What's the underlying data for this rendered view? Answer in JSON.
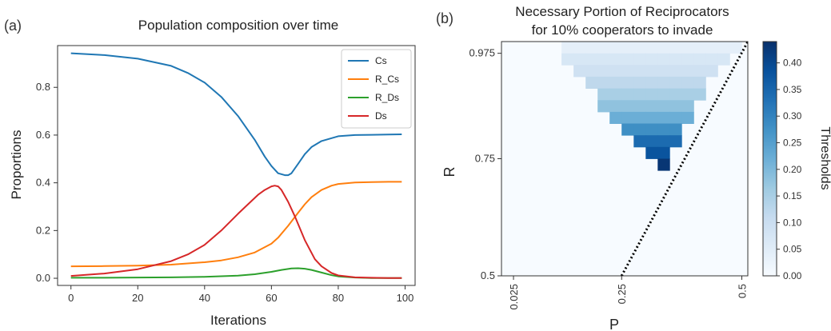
{
  "panel_a_label": "(a)",
  "panel_b_label": "(b)",
  "chart_data": [
    {
      "type": "line",
      "title": "Population composition over time",
      "xlabel": "Iterations",
      "ylabel": "Proportions",
      "xlim": [
        -4,
        103
      ],
      "ylim": [
        -0.03,
        0.975
      ],
      "xticks": [
        0,
        20,
        40,
        60,
        80,
        100
      ],
      "yticks": [
        0.0,
        0.2,
        0.4,
        0.6,
        0.8
      ],
      "xtick_labels": [
        "0",
        "20",
        "40",
        "60",
        "80",
        "100"
      ],
      "ytick_labels": [
        "0.0",
        "0.2",
        "0.4",
        "0.6",
        "0.8"
      ],
      "legend_position": "top-right",
      "series": [
        {
          "name": "Cs",
          "color": "#1f77b4",
          "x": [
            0,
            10,
            20,
            30,
            35,
            40,
            45,
            50,
            55,
            58,
            60,
            62,
            64,
            65,
            66,
            68,
            70,
            72,
            75,
            80,
            85,
            90,
            95,
            99
          ],
          "y": [
            0.943,
            0.935,
            0.92,
            0.89,
            0.86,
            0.82,
            0.76,
            0.68,
            0.58,
            0.51,
            0.47,
            0.44,
            0.432,
            0.432,
            0.44,
            0.48,
            0.52,
            0.55,
            0.575,
            0.595,
            0.6,
            0.601,
            0.602,
            0.603
          ]
        },
        {
          "name": "R_Cs",
          "color": "#ff7f0e",
          "x": [
            0,
            10,
            20,
            30,
            40,
            45,
            50,
            55,
            60,
            62,
            65,
            68,
            70,
            72,
            75,
            78,
            80,
            85,
            90,
            95,
            99
          ],
          "y": [
            0.05,
            0.051,
            0.053,
            0.057,
            0.067,
            0.075,
            0.088,
            0.108,
            0.145,
            0.17,
            0.22,
            0.275,
            0.31,
            0.34,
            0.37,
            0.388,
            0.395,
            0.401,
            0.403,
            0.404,
            0.404
          ]
        },
        {
          "name": "R_Ds",
          "color": "#2ca02c",
          "x": [
            0,
            10,
            20,
            30,
            40,
            50,
            55,
            60,
            63,
            66,
            68,
            70,
            72,
            75,
            78,
            80,
            85,
            90,
            95,
            99
          ],
          "y": [
            0.002,
            0.002,
            0.003,
            0.004,
            0.006,
            0.011,
            0.017,
            0.027,
            0.035,
            0.041,
            0.042,
            0.04,
            0.035,
            0.024,
            0.013,
            0.008,
            0.003,
            0.001,
            0.001,
            0.001
          ]
        },
        {
          "name": "Ds",
          "color": "#d62728",
          "x": [
            0,
            10,
            20,
            30,
            35,
            40,
            45,
            50,
            53,
            56,
            58,
            60,
            61,
            62,
            63,
            65,
            67,
            70,
            73,
            75,
            78,
            80,
            85,
            90,
            95,
            99
          ],
          "y": [
            0.01,
            0.02,
            0.038,
            0.072,
            0.1,
            0.14,
            0.2,
            0.27,
            0.31,
            0.35,
            0.37,
            0.385,
            0.388,
            0.385,
            0.37,
            0.32,
            0.26,
            0.16,
            0.08,
            0.05,
            0.022,
            0.012,
            0.004,
            0.002,
            0.001,
            0.001
          ]
        }
      ]
    },
    {
      "type": "heatmap",
      "title": "Necessary Portion of Reciprocators\nfor 10% cooperators to invade",
      "xlabel": "P",
      "ylabel": "R",
      "xtick_labels": [
        "0.025",
        "0.25",
        "0.5"
      ],
      "ytick_labels": [
        "0.975",
        "0.75",
        "0.5"
      ],
      "p_min": 0.0,
      "p_max": 0.5125,
      "r_min": 0.5,
      "r_max": 1.0,
      "cell_size": 0.025,
      "colorbar_label": "Thresholds",
      "colorbar_range": [
        0,
        0.44
      ],
      "colorbar_ticks": [
        0.0,
        0.05,
        0.1,
        0.15,
        0.2,
        0.25,
        0.3,
        0.35,
        0.4
      ],
      "colorbar_tick_labels": [
        "0.00",
        "0.05",
        "0.10",
        "0.15",
        "0.20",
        "0.25",
        "0.30",
        "0.35",
        "0.40"
      ],
      "colormap": [
        "#f7fbff",
        "#deebf7",
        "#c6dbef",
        "#9ecae1",
        "#6baed6",
        "#4292c6",
        "#2171b5",
        "#08519c",
        "#08306b"
      ],
      "boundary_line": {
        "style": "dotted",
        "color": "#000000",
        "from": [
          0.25,
          0.5
        ],
        "to": [
          0.5125,
          1.0
        ]
      },
      "cells": [
        {
          "p": 0.125,
          "r": 0.975,
          "v": 0.04
        },
        {
          "p": 0.15,
          "r": 0.975,
          "v": 0.04
        },
        {
          "p": 0.175,
          "r": 0.975,
          "v": 0.04
        },
        {
          "p": 0.2,
          "r": 0.975,
          "v": 0.04
        },
        {
          "p": 0.225,
          "r": 0.975,
          "v": 0.04
        },
        {
          "p": 0.25,
          "r": 0.975,
          "v": 0.04
        },
        {
          "p": 0.275,
          "r": 0.975,
          "v": 0.04
        },
        {
          "p": 0.3,
          "r": 0.975,
          "v": 0.04
        },
        {
          "p": 0.325,
          "r": 0.975,
          "v": 0.04
        },
        {
          "p": 0.35,
          "r": 0.975,
          "v": 0.04
        },
        {
          "p": 0.375,
          "r": 0.975,
          "v": 0.04
        },
        {
          "p": 0.4,
          "r": 0.975,
          "v": 0.04
        },
        {
          "p": 0.425,
          "r": 0.975,
          "v": 0.04
        },
        {
          "p": 0.45,
          "r": 0.975,
          "v": 0.04
        },
        {
          "p": 0.475,
          "r": 0.975,
          "v": 0.04
        },
        {
          "p": 0.125,
          "r": 0.95,
          "v": 0.07
        },
        {
          "p": 0.15,
          "r": 0.95,
          "v": 0.07
        },
        {
          "p": 0.175,
          "r": 0.95,
          "v": 0.07
        },
        {
          "p": 0.2,
          "r": 0.95,
          "v": 0.07
        },
        {
          "p": 0.225,
          "r": 0.95,
          "v": 0.07
        },
        {
          "p": 0.25,
          "r": 0.95,
          "v": 0.07
        },
        {
          "p": 0.275,
          "r": 0.95,
          "v": 0.07
        },
        {
          "p": 0.3,
          "r": 0.95,
          "v": 0.07
        },
        {
          "p": 0.325,
          "r": 0.95,
          "v": 0.07
        },
        {
          "p": 0.35,
          "r": 0.95,
          "v": 0.07
        },
        {
          "p": 0.375,
          "r": 0.95,
          "v": 0.07
        },
        {
          "p": 0.4,
          "r": 0.95,
          "v": 0.07
        },
        {
          "p": 0.425,
          "r": 0.95,
          "v": 0.07
        },
        {
          "p": 0.45,
          "r": 0.95,
          "v": 0.07
        },
        {
          "p": 0.15,
          "r": 0.925,
          "v": 0.09
        },
        {
          "p": 0.175,
          "r": 0.925,
          "v": 0.09
        },
        {
          "p": 0.2,
          "r": 0.925,
          "v": 0.09
        },
        {
          "p": 0.225,
          "r": 0.925,
          "v": 0.09
        },
        {
          "p": 0.25,
          "r": 0.925,
          "v": 0.09
        },
        {
          "p": 0.275,
          "r": 0.925,
          "v": 0.09
        },
        {
          "p": 0.3,
          "r": 0.925,
          "v": 0.09
        },
        {
          "p": 0.325,
          "r": 0.925,
          "v": 0.09
        },
        {
          "p": 0.35,
          "r": 0.925,
          "v": 0.09
        },
        {
          "p": 0.375,
          "r": 0.925,
          "v": 0.09
        },
        {
          "p": 0.4,
          "r": 0.925,
          "v": 0.09
        },
        {
          "p": 0.425,
          "r": 0.925,
          "v": 0.09
        },
        {
          "p": 0.175,
          "r": 0.9,
          "v": 0.12
        },
        {
          "p": 0.2,
          "r": 0.9,
          "v": 0.12
        },
        {
          "p": 0.225,
          "r": 0.9,
          "v": 0.12
        },
        {
          "p": 0.25,
          "r": 0.9,
          "v": 0.12
        },
        {
          "p": 0.275,
          "r": 0.9,
          "v": 0.12
        },
        {
          "p": 0.3,
          "r": 0.9,
          "v": 0.12
        },
        {
          "p": 0.325,
          "r": 0.9,
          "v": 0.12
        },
        {
          "p": 0.35,
          "r": 0.9,
          "v": 0.12
        },
        {
          "p": 0.375,
          "r": 0.9,
          "v": 0.12
        },
        {
          "p": 0.4,
          "r": 0.9,
          "v": 0.12
        },
        {
          "p": 0.2,
          "r": 0.875,
          "v": 0.15
        },
        {
          "p": 0.225,
          "r": 0.875,
          "v": 0.15
        },
        {
          "p": 0.25,
          "r": 0.875,
          "v": 0.15
        },
        {
          "p": 0.275,
          "r": 0.875,
          "v": 0.15
        },
        {
          "p": 0.3,
          "r": 0.875,
          "v": 0.15
        },
        {
          "p": 0.325,
          "r": 0.875,
          "v": 0.15
        },
        {
          "p": 0.35,
          "r": 0.875,
          "v": 0.15
        },
        {
          "p": 0.375,
          "r": 0.875,
          "v": 0.15
        },
        {
          "p": 0.4,
          "r": 0.875,
          "v": 0.15
        },
        {
          "p": 0.2,
          "r": 0.85,
          "v": 0.18
        },
        {
          "p": 0.225,
          "r": 0.85,
          "v": 0.18
        },
        {
          "p": 0.25,
          "r": 0.85,
          "v": 0.18
        },
        {
          "p": 0.275,
          "r": 0.85,
          "v": 0.18
        },
        {
          "p": 0.3,
          "r": 0.85,
          "v": 0.18
        },
        {
          "p": 0.325,
          "r": 0.85,
          "v": 0.18
        },
        {
          "p": 0.35,
          "r": 0.85,
          "v": 0.18
        },
        {
          "p": 0.375,
          "r": 0.85,
          "v": 0.18
        },
        {
          "p": 0.225,
          "r": 0.825,
          "v": 0.22
        },
        {
          "p": 0.25,
          "r": 0.825,
          "v": 0.22
        },
        {
          "p": 0.275,
          "r": 0.825,
          "v": 0.22
        },
        {
          "p": 0.3,
          "r": 0.825,
          "v": 0.22
        },
        {
          "p": 0.325,
          "r": 0.825,
          "v": 0.22
        },
        {
          "p": 0.35,
          "r": 0.825,
          "v": 0.22
        },
        {
          "p": 0.375,
          "r": 0.825,
          "v": 0.22
        },
        {
          "p": 0.25,
          "r": 0.8,
          "v": 0.28
        },
        {
          "p": 0.275,
          "r": 0.8,
          "v": 0.28
        },
        {
          "p": 0.3,
          "r": 0.8,
          "v": 0.28
        },
        {
          "p": 0.325,
          "r": 0.8,
          "v": 0.28
        },
        {
          "p": 0.35,
          "r": 0.8,
          "v": 0.28
        },
        {
          "p": 0.275,
          "r": 0.775,
          "v": 0.34
        },
        {
          "p": 0.3,
          "r": 0.775,
          "v": 0.34
        },
        {
          "p": 0.325,
          "r": 0.775,
          "v": 0.34
        },
        {
          "p": 0.35,
          "r": 0.775,
          "v": 0.34
        },
        {
          "p": 0.3,
          "r": 0.75,
          "v": 0.38
        },
        {
          "p": 0.325,
          "r": 0.75,
          "v": 0.38
        },
        {
          "p": 0.325,
          "r": 0.725,
          "v": 0.43
        }
      ]
    }
  ]
}
